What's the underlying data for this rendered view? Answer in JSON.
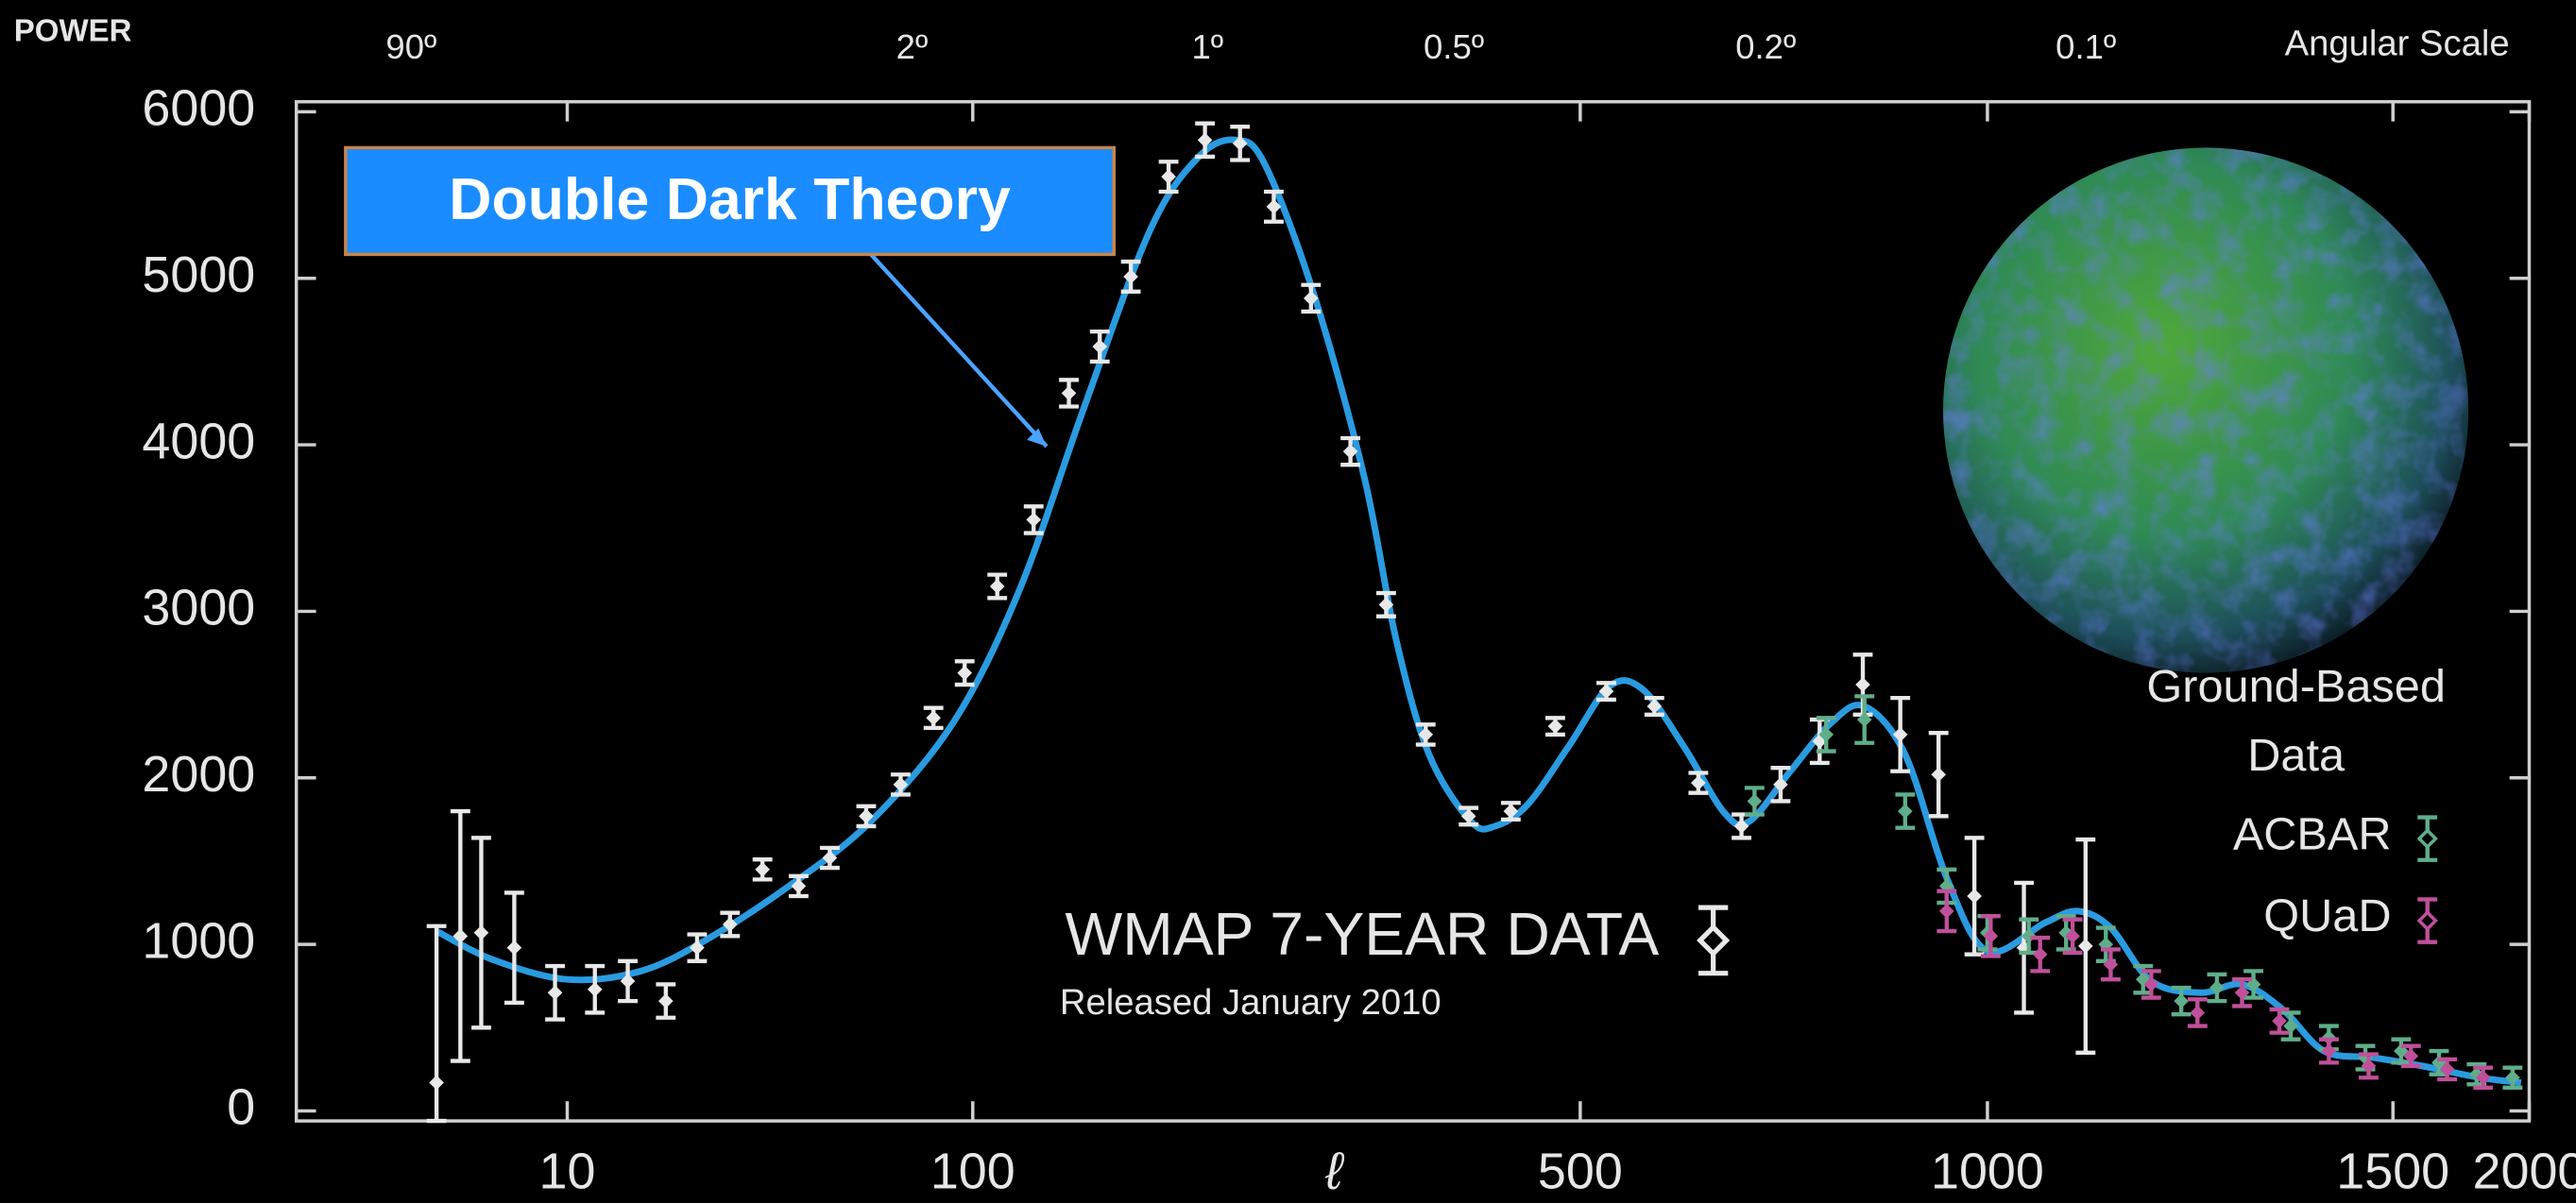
{
  "chart_data": {
    "type": "scatter",
    "ylabel": "POWER",
    "xlabel": "ℓ",
    "top_axis": {
      "title": "Angular Scale",
      "labels": [
        "90º",
        "2º",
        "1º",
        "0.5º",
        "0.2º",
        "0.1º"
      ]
    },
    "xlim": [
      2,
      2000
    ],
    "xticks": [
      10,
      100,
      500,
      1000,
      1500,
      2000
    ],
    "ylim": [
      -60,
      6060
    ],
    "yticks": [
      0,
      1000,
      2000,
      3000,
      4000,
      5000,
      6000
    ],
    "ground_based_label": [
      "Ground-Based",
      "Data"
    ],
    "release_note": "Released January 2010",
    "series": [
      {
        "name": "Double Dark Theory",
        "type": "line",
        "color": "#2a9be0",
        "x": [
          4.6,
          6.4,
          10,
          15.2,
          22.1,
          35.2,
          56.1,
          89.4,
          113,
          134,
          160,
          182,
          201,
          217,
          247,
          282,
          307,
          335,
          374,
          399,
          435,
          485,
          536,
          577,
          627,
          677,
          708,
          758,
          808,
          849,
          899,
          950,
          1000,
          1071,
          1111,
          1152,
          1202,
          1263,
          1314,
          1364,
          1415,
          1476,
          1608,
          1819,
          1970
        ],
        "values": [
          1080,
          910,
          790,
          840,
          1030,
          1350,
          1740,
          2330,
          3120,
          4210,
          5290,
          5730,
          5830,
          5680,
          4900,
          3810,
          2830,
          2140,
          1740,
          1710,
          1840,
          2190,
          2550,
          2530,
          2190,
          1790,
          1740,
          2040,
          2330,
          2430,
          2140,
          1400,
          960,
          1130,
          1200,
          1100,
          780,
          710,
          760,
          610,
          360,
          320,
          270,
          200,
          170
        ]
      },
      {
        "name": "WMAP 7-YEAR DATA",
        "type": "scatter",
        "color": "#e8e8e8",
        "x": [
          4.6,
          5.3,
          6.0,
          7.3,
          9.3,
          11.7,
          14.1,
          17.5,
          20.9,
          25.2,
          30.3,
          37.2,
          44.4,
          54.6,
          66.4,
          80,
          95.5,
          106.7,
          117.5,
          129,
          140,
          152,
          168,
          185,
          203,
          222,
          245,
          272,
          299,
          332,
          372,
          416,
          468,
          532,
          591,
          645,
          698,
          746,
          794,
          847,
          893,
          940,
          984,
          1045,
          1121
        ],
        "values": [
          170,
          1050,
          1070,
          980,
          710,
          730,
          780,
          660,
          980,
          1120,
          1450,
          1350,
          1520,
          1770,
          1960,
          2360,
          2630,
          3150,
          3550,
          4310,
          4590,
          5010,
          5610,
          5830,
          5810,
          5430,
          4880,
          3960,
          3040,
          2260,
          1770,
          1800,
          2310,
          2520,
          2430,
          1970,
          1710,
          1960,
          2220,
          2560,
          2260,
          2020,
          1290,
          980,
          990
        ],
        "errors": [
          940,
          750,
          570,
          330,
          160,
          140,
          120,
          100,
          80,
          70,
          60,
          60,
          60,
          60,
          60,
          60,
          70,
          70,
          80,
          80,
          90,
          90,
          90,
          100,
          100,
          90,
          80,
          80,
          70,
          60,
          50,
          50,
          50,
          50,
          50,
          60,
          70,
          100,
          130,
          180,
          220,
          250,
          350,
          390,
          640
        ]
      },
      {
        "name": "ACBAR",
        "type": "scatter",
        "color": "#5fae8a",
        "x": [
          714,
          802,
          849,
          899,
          950,
          1000,
          1051,
          1097,
          1146,
          1192,
          1239,
          1283,
          1328,
          1374,
          1421,
          1466,
          1530,
          1669,
          1807,
          1939
        ],
        "values": [
          1860,
          2260,
          2350,
          1800,
          1350,
          1070,
          1050,
          1070,
          1000,
          790,
          660,
          740,
          760,
          510,
          440,
          320,
          360,
          290,
          220,
          200
        ],
        "errors": [
          80,
          100,
          140,
          100,
          100,
          100,
          100,
          100,
          100,
          80,
          80,
          80,
          80,
          80,
          70,
          70,
          70,
          70,
          60,
          60
        ]
      },
      {
        "name": "QUaD",
        "type": "scatter",
        "color": "#c0509a",
        "x": [
          950,
          1004,
          1065,
          1105,
          1152,
          1202,
          1259,
          1314,
          1360,
          1421,
          1470,
          1566,
          1699,
          1831
        ],
        "values": [
          1200,
          1050,
          940,
          1050,
          880,
          760,
          590,
          710,
          540,
          360,
          270,
          330,
          250,
          200
        ],
        "errors": [
          120,
          120,
          100,
          100,
          90,
          80,
          80,
          80,
          70,
          70,
          70,
          60,
          60,
          60
        ]
      }
    ]
  }
}
